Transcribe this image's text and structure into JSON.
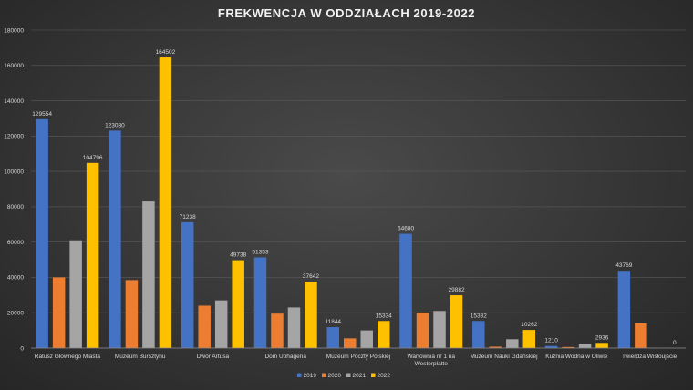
{
  "chart_data": {
    "type": "bar",
    "title": "FREKWENCJA W ODDZIAŁACH 2019-2022",
    "xlabel": "",
    "ylabel": "",
    "ylim": [
      0,
      180000
    ],
    "yticks": [
      "0",
      "20000",
      "40000",
      "60000",
      "80000",
      "100000",
      "120000",
      "140000",
      "160000",
      "180000"
    ],
    "grid": true,
    "legend_position": "bottom",
    "categories": [
      [
        "Ratusz Głównego Miasta"
      ],
      [
        "Muzeum Bursztynu"
      ],
      [
        "Dwór Artusa"
      ],
      [
        "Dom Uphagena"
      ],
      [
        "Muzeum Poczty Polskiej"
      ],
      [
        "Wartownia nr 1 na",
        "Westerplatte"
      ],
      [
        "Muzeum Nauki Gdańskiej"
      ],
      [
        "Kuźnia Wodna w Oliwie"
      ],
      [
        "Twierdza Wisłoujście"
      ]
    ],
    "series": [
      {
        "name": "2019",
        "color": "#4472c4",
        "values": [
          129554,
          123080,
          71238,
          51353,
          11844,
          64680,
          15332,
          1210,
          43769
        ],
        "labels": [
          "129554",
          "123080",
          "71238",
          "51353",
          "11844",
          "64680",
          "15332",
          "1210",
          "43769"
        ]
      },
      {
        "name": "2020",
        "color": "#ed7d31",
        "values": [
          40000,
          38500,
          24000,
          19500,
          5500,
          20000,
          800,
          600,
          14000
        ],
        "labels": [
          "",
          "",
          "",
          "",
          "",
          "",
          "",
          "",
          ""
        ]
      },
      {
        "name": "2021",
        "color": "#a5a5a5",
        "values": [
          61000,
          83000,
          27000,
          23000,
          10000,
          21000,
          5000,
          2500,
          0
        ],
        "labels": [
          "",
          "",
          "",
          "",
          "",
          "",
          "",
          "",
          ""
        ]
      },
      {
        "name": "2022",
        "color": "#ffc000",
        "values": [
          104796,
          164502,
          49738,
          37642,
          15334,
          29882,
          10262,
          2936,
          0
        ],
        "labels": [
          "104796",
          "164502",
          "49738",
          "37642",
          "15334",
          "29882",
          "10262",
          "2936",
          "0"
        ]
      }
    ]
  }
}
